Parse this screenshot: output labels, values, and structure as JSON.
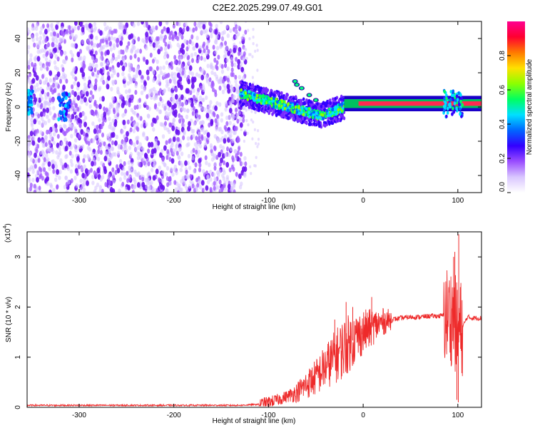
{
  "title": "C2E2.2025.299.07.49.G01",
  "chart_data": [
    {
      "type": "heatmap",
      "xlabel": "Height of straight line (km)",
      "ylabel": "Frequency (Hz)",
      "xlim": [
        -355,
        125
      ],
      "ylim": [
        -50,
        50
      ],
      "x_ticks": [
        -300,
        -200,
        -100,
        0,
        100
      ],
      "y_ticks": [
        -40,
        -20,
        0,
        20,
        40
      ],
      "colorbar": {
        "label": "Normalized spectral amplitude",
        "range": [
          0,
          1
        ],
        "ticks": [
          "0.0",
          "0.2",
          "0.4",
          "0.6",
          "0.8"
        ],
        "colors": [
          "#ffffff",
          "#d9c6ff",
          "#9a4dff",
          "#3300ff",
          "#0066ff",
          "#00e0ff",
          "#00ff60",
          "#8cff00",
          "#ffe000",
          "#ff7a00",
          "#ff0030",
          "#ff0090"
        ]
      },
      "features": {
        "noise_region_x": [
          -355,
          -130
        ],
        "carrier_frequency_hz": 2,
        "carrier_x_range": [
          -20,
          125
        ]
      }
    },
    {
      "type": "line",
      "xlabel": "Height of straight line (km)",
      "ylabel": "SNR (10 * v/v)",
      "y_multiplier": "(x10",
      "y_multiplier_exp": "4",
      "y_multiplier_close": ")",
      "xlim": [
        -355,
        125
      ],
      "ylim": [
        0,
        3.5
      ],
      "x_ticks": [
        -300,
        -200,
        -100,
        0,
        100
      ],
      "y_ticks": [
        0,
        1,
        2,
        3
      ],
      "color": "#ee2a2a",
      "envelope": {
        "x": [
          -355,
          -130,
          -110,
          -100,
          -90,
          -80,
          -70,
          -60,
          -50,
          -40,
          -30,
          -20,
          -10,
          0,
          10,
          20,
          30,
          40,
          50,
          60,
          70,
          80,
          90,
          95,
          100,
          105,
          110,
          115,
          125
        ],
        "y": [
          0.04,
          0.04,
          0.06,
          0.1,
          0.15,
          0.22,
          0.3,
          0.45,
          0.6,
          0.8,
          1.0,
          1.2,
          1.35,
          1.5,
          1.6,
          1.7,
          1.75,
          1.78,
          1.8,
          1.8,
          1.82,
          1.82,
          1.85,
          1.8,
          1.5,
          1.6,
          1.8,
          1.78,
          1.78
        ]
      },
      "spikes": [
        {
          "x": 95.5,
          "y": 3.0
        },
        {
          "x": 96.8,
          "y": 3.1
        },
        {
          "x": 101,
          "y": 3.45
        },
        {
          "x": 99,
          "y": 0.15
        },
        {
          "x": 100.5,
          "y": 0.1
        },
        {
          "x": -30,
          "y": 1.75
        },
        {
          "x": -18,
          "y": 2.1
        },
        {
          "x": -11,
          "y": 2.0
        },
        {
          "x": 9,
          "y": 2.2
        }
      ]
    }
  ]
}
